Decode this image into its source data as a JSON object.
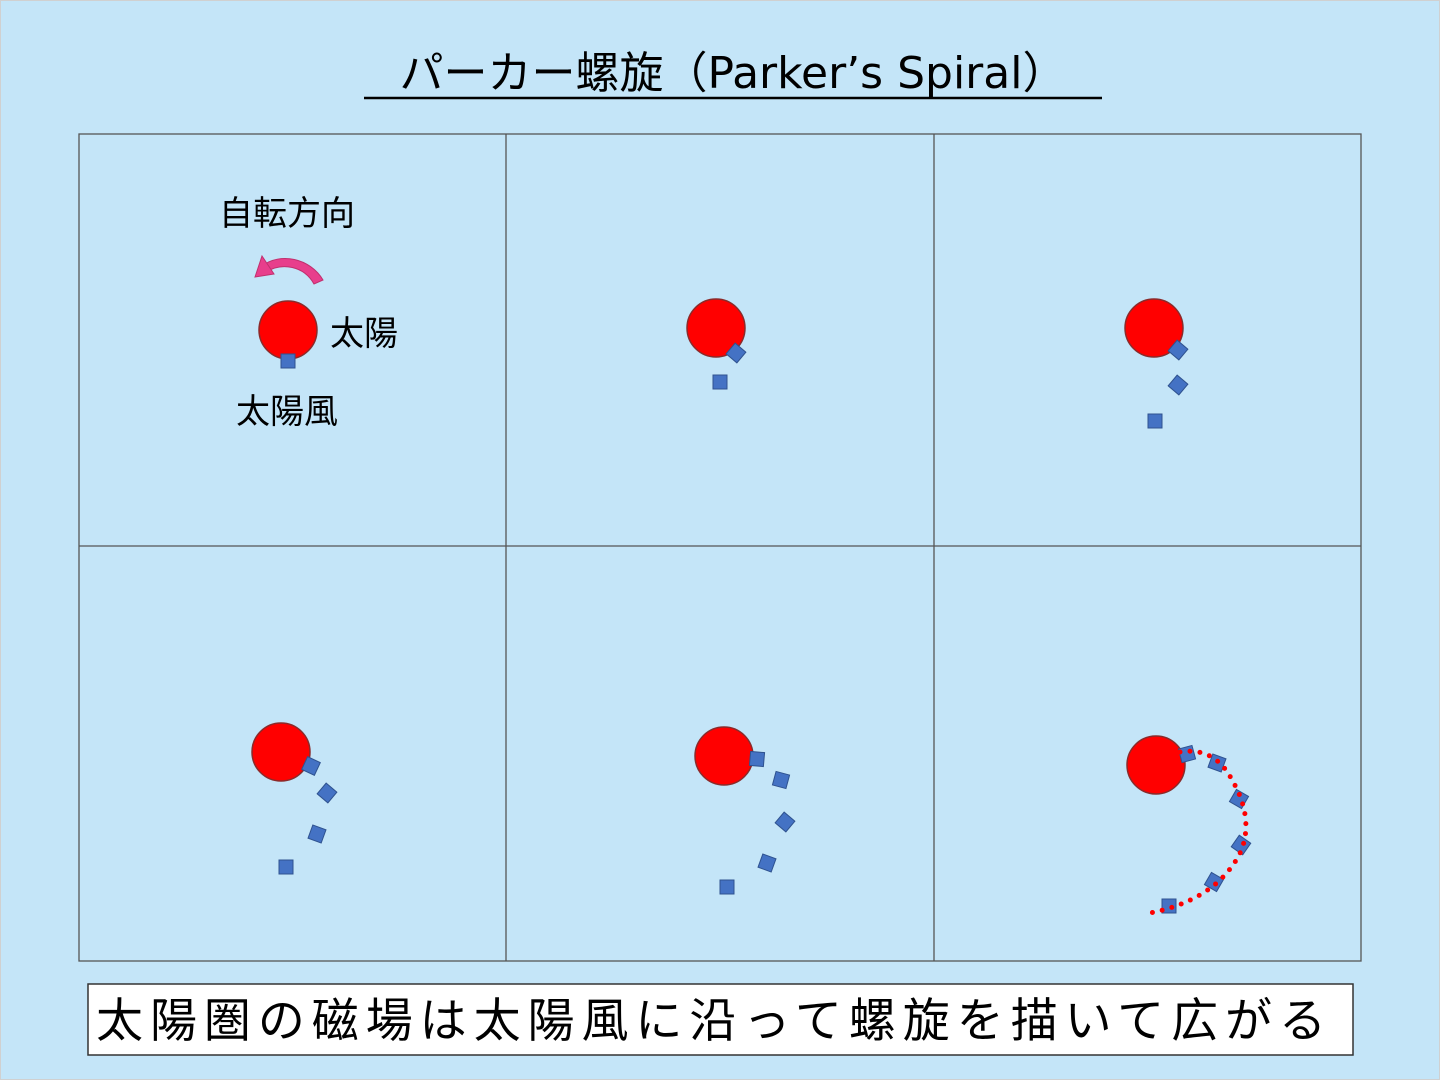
{
  "title": "パーカー螺旋（Parker’s Spiral）",
  "labels": {
    "rotation_direction": "自転方向",
    "sun": "太陽",
    "solar_wind": "太陽風"
  },
  "caption": "太陽圏の磁場は太陽風に沿って螺旋を描いて広がる",
  "colors": {
    "background": "#c4e5f8",
    "sun": "#ff0000",
    "solar_wind_particle": "#4472c4",
    "rotation_arrow": "#e83e8c",
    "magnetic_field_line": "#ff0000"
  },
  "panels": [
    {
      "step": 1,
      "particles": 1
    },
    {
      "step": 2,
      "particles": 2
    },
    {
      "step": 3,
      "particles": 3
    },
    {
      "step": 4,
      "particles": 4
    },
    {
      "step": 5,
      "particles": 5
    },
    {
      "step": 6,
      "particles": 6,
      "field_line": true
    }
  ]
}
